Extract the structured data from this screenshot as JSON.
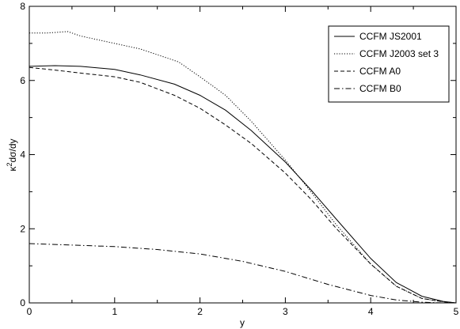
{
  "chart_data": {
    "type": "line",
    "title": "",
    "xlabel": "y",
    "ylabel": "κ²dσ/dy",
    "ylabel_base": "κ",
    "ylabel_sup": "2",
    "ylabel_rest": "dσ/dy",
    "xlim": [
      0,
      5
    ],
    "ylim": [
      0,
      8
    ],
    "xticks": [
      0,
      1,
      2,
      3,
      4,
      5
    ],
    "yticks": [
      0,
      2,
      4,
      6,
      8
    ],
    "xtick_labels": [
      "0",
      "1",
      "2",
      "3",
      "4",
      "5"
    ],
    "ytick_labels": [
      "0",
      "2",
      "4",
      "6",
      "8"
    ],
    "grid": false,
    "legend_position": "top-right",
    "series": [
      {
        "name": "CCFM JS2001",
        "dash": "solid",
        "color": "#000000",
        "x": [
          0,
          0.3,
          0.6,
          1.0,
          1.3,
          1.7,
          2.0,
          2.3,
          2.6,
          3.0,
          3.3,
          3.6,
          4.0,
          4.3,
          4.6,
          4.85,
          5.0
        ],
        "y": [
          6.38,
          6.4,
          6.38,
          6.3,
          6.15,
          5.9,
          5.6,
          5.2,
          4.65,
          3.8,
          3.05,
          2.25,
          1.2,
          0.55,
          0.18,
          0.04,
          0.0
        ]
      },
      {
        "name": "CCFM J2003 set 3",
        "dash": "dotted",
        "color": "#000000",
        "x": [
          0,
          0.2,
          0.45,
          0.6,
          0.8,
          1.0,
          1.3,
          1.75,
          2.0,
          2.3,
          2.6,
          3.0,
          3.3,
          3.6,
          4.0,
          4.3,
          4.6,
          4.85,
          5.0
        ],
        "y": [
          7.28,
          7.28,
          7.32,
          7.2,
          7.1,
          7.0,
          6.85,
          6.5,
          6.1,
          5.6,
          4.9,
          3.85,
          3.0,
          2.1,
          1.05,
          0.45,
          0.12,
          0.03,
          0.0
        ]
      },
      {
        "name": "CCFM A0",
        "dash": "dashed",
        "color": "#000000",
        "x": [
          0,
          0.3,
          0.6,
          1.0,
          1.3,
          1.7,
          2.0,
          2.3,
          2.6,
          3.0,
          3.3,
          3.6,
          4.0,
          4.3,
          4.6,
          4.85,
          5.0
        ],
        "y": [
          6.35,
          6.28,
          6.2,
          6.1,
          5.95,
          5.6,
          5.25,
          4.8,
          4.3,
          3.5,
          2.8,
          2.0,
          1.05,
          0.45,
          0.12,
          0.03,
          0.0
        ]
      },
      {
        "name": "CCFM B0",
        "dash": "dashdot",
        "color": "#000000",
        "x": [
          0,
          0.5,
          1.0,
          1.5,
          2.0,
          2.5,
          3.0,
          3.5,
          4.0,
          4.3,
          4.6,
          4.85,
          5.0
        ],
        "y": [
          1.6,
          1.56,
          1.52,
          1.44,
          1.32,
          1.12,
          0.85,
          0.5,
          0.2,
          0.08,
          0.02,
          0.0,
          0.0
        ]
      }
    ]
  }
}
